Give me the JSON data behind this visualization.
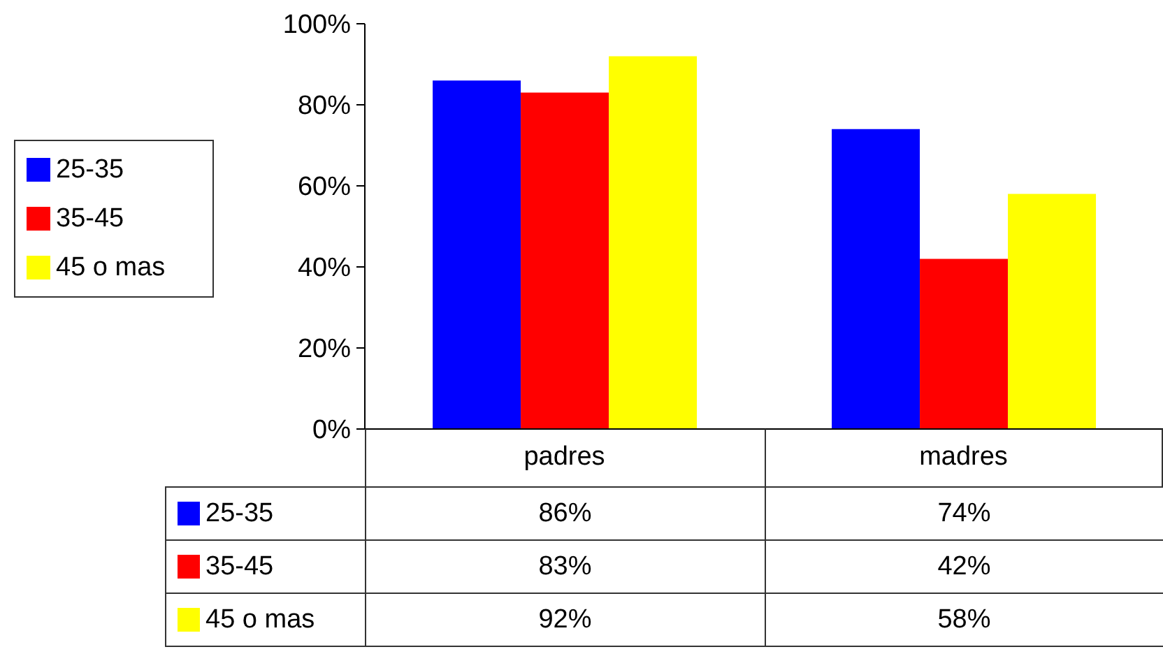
{
  "chart_data": {
    "type": "bar",
    "categories": [
      "padres",
      "madres"
    ],
    "series": [
      {
        "name": "25-35",
        "color": "#0000ff",
        "values": [
          86,
          74
        ],
        "value_labels": [
          "86%",
          "74%"
        ]
      },
      {
        "name": "35-45",
        "color": "#ff0000",
        "values": [
          83,
          42
        ],
        "value_labels": [
          "83%",
          "42%"
        ]
      },
      {
        "name": "45 o mas",
        "color": "#ffff00",
        "values": [
          92,
          58
        ],
        "value_labels": [
          "92%",
          "58%"
        ]
      }
    ],
    "ylim": [
      0,
      100
    ],
    "yticks": [
      {
        "value": 0,
        "label": "0%"
      },
      {
        "value": 20,
        "label": "20%"
      },
      {
        "value": 40,
        "label": "40%"
      },
      {
        "value": 60,
        "label": "60%"
      },
      {
        "value": 80,
        "label": "80%"
      },
      {
        "value": 100,
        "label": "100%"
      }
    ],
    "legend": "left"
  }
}
